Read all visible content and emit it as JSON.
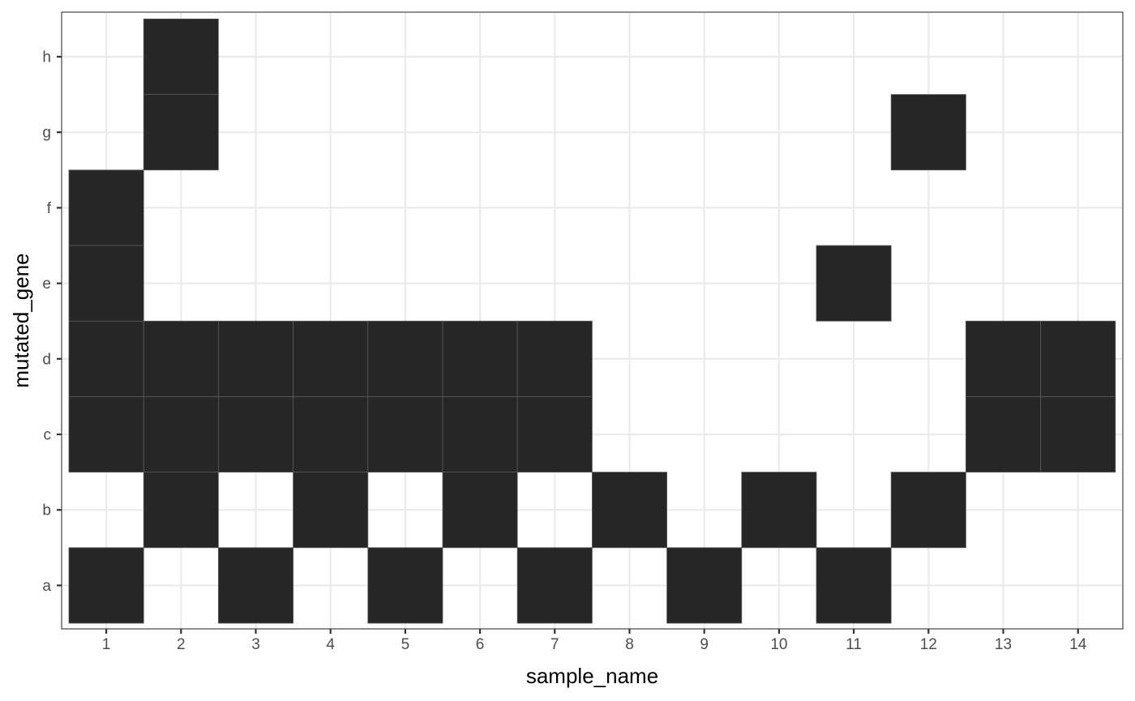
{
  "chart_data": {
    "type": "heatmap",
    "xlabel": "sample_name",
    "ylabel": "mutated_gene",
    "x_categories": [
      "1",
      "2",
      "3",
      "4",
      "5",
      "6",
      "7",
      "8",
      "9",
      "10",
      "11",
      "12",
      "13",
      "14"
    ],
    "y_categories": [
      "a",
      "b",
      "c",
      "d",
      "e",
      "f",
      "g",
      "h"
    ],
    "grid": true,
    "fill_color": "#262626",
    "cells": [
      {
        "x": "1",
        "y": "a"
      },
      {
        "x": "1",
        "y": "c"
      },
      {
        "x": "1",
        "y": "d"
      },
      {
        "x": "1",
        "y": "e"
      },
      {
        "x": "1",
        "y": "f"
      },
      {
        "x": "2",
        "y": "b"
      },
      {
        "x": "2",
        "y": "c"
      },
      {
        "x": "2",
        "y": "d"
      },
      {
        "x": "2",
        "y": "g"
      },
      {
        "x": "2",
        "y": "h"
      },
      {
        "x": "3",
        "y": "a"
      },
      {
        "x": "3",
        "y": "c"
      },
      {
        "x": "3",
        "y": "d"
      },
      {
        "x": "4",
        "y": "b"
      },
      {
        "x": "4",
        "y": "c"
      },
      {
        "x": "4",
        "y": "d"
      },
      {
        "x": "5",
        "y": "a"
      },
      {
        "x": "5",
        "y": "c"
      },
      {
        "x": "5",
        "y": "d"
      },
      {
        "x": "6",
        "y": "b"
      },
      {
        "x": "6",
        "y": "c"
      },
      {
        "x": "6",
        "y": "d"
      },
      {
        "x": "7",
        "y": "a"
      },
      {
        "x": "7",
        "y": "c"
      },
      {
        "x": "7",
        "y": "d"
      },
      {
        "x": "8",
        "y": "b"
      },
      {
        "x": "9",
        "y": "a"
      },
      {
        "x": "10",
        "y": "b"
      },
      {
        "x": "11",
        "y": "a"
      },
      {
        "x": "11",
        "y": "e"
      },
      {
        "x": "12",
        "y": "b"
      },
      {
        "x": "12",
        "y": "g"
      },
      {
        "x": "13",
        "y": "c"
      },
      {
        "x": "13",
        "y": "d"
      },
      {
        "x": "14",
        "y": "c"
      },
      {
        "x": "14",
        "y": "d"
      }
    ]
  }
}
